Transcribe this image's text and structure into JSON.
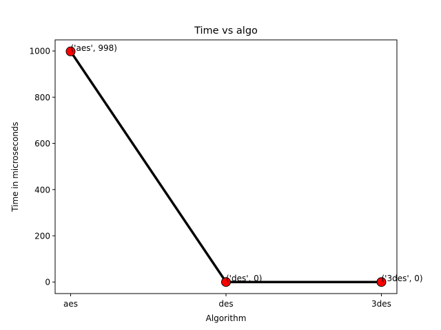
{
  "chart_data": {
    "type": "line",
    "title": "Time vs algo",
    "xlabel": "Algorithm",
    "ylabel": "Time in microseconds",
    "categories": [
      "aes",
      "des",
      "3des"
    ],
    "series": [
      {
        "values": [
          998,
          0,
          0
        ]
      }
    ],
    "annotations": [
      "('aes', 998)",
      "('des', 0)",
      "('3des', 0)"
    ],
    "ylim": [
      -50,
      1048
    ],
    "yticks": [
      0,
      200,
      400,
      600,
      800,
      1000
    ],
    "grid": false,
    "legend": "none",
    "line_color": "#000000",
    "marker_color": "#ff0000",
    "marker_edge_color": "#000000"
  }
}
